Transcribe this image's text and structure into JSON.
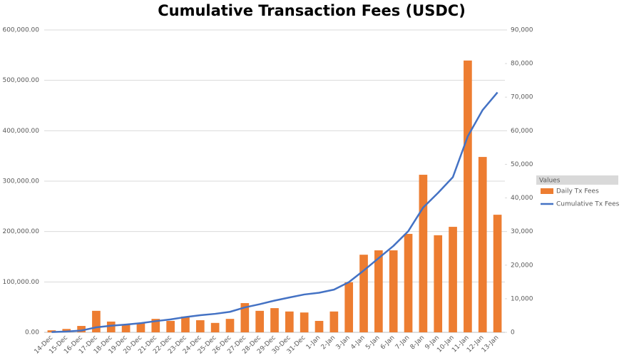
{
  "chart_data": {
    "type": "bar-line",
    "title": "Cumulative Transaction Fees (USDC)",
    "legend_title": "Values",
    "legend_position": "right",
    "categories": [
      "14-Dec",
      "15-Dec",
      "16-Dec",
      "17-Dec",
      "18-Dec",
      "19-Dec",
      "20-Dec",
      "21-Dec",
      "22-Dec",
      "23-Dec",
      "24-Dec",
      "25-Dec",
      "26-Dec",
      "27-Dec",
      "28-Dec",
      "29-Dec",
      "30-Dec",
      "31-Dec",
      "1-Jan",
      "2-Jan",
      "3-Jan",
      "4-Jan",
      "5-Jan",
      "6-Jan",
      "7-Jan",
      "8-Jan",
      "9-Jan",
      "10-Jan",
      "11-Jan",
      "12-Jan",
      "13-Jan"
    ],
    "series": [
      {
        "name": "Daily Tx Fees",
        "type": "bar",
        "axis": "y2",
        "color": "#ed7d31",
        "values": [
          600,
          1000,
          1900,
          6400,
          3200,
          2300,
          2800,
          4000,
          3400,
          4700,
          3600,
          2800,
          4000,
          8700,
          6400,
          7200,
          6200,
          5900,
          3400,
          6200,
          14900,
          23100,
          24400,
          24400,
          29300,
          46900,
          28900,
          31400,
          80900,
          52200,
          35000
        ]
      },
      {
        "name": "Cumulative Tx Fees",
        "type": "line",
        "axis": "y",
        "color": "#4472c4",
        "values": [
          600,
          1600,
          3500,
          9900,
          13100,
          15400,
          18200,
          22200,
          25600,
          30300,
          33900,
          36700,
          40700,
          49400,
          55800,
          63000,
          69200,
          75100,
          78500,
          84700,
          99600,
          122700,
          147100,
          171500,
          200800,
          247700,
          276600,
          308000,
          388900,
          441100,
          476100
        ]
      }
    ],
    "ylim": [
      0,
      600000
    ],
    "yticks": [
      {
        "value": 0,
        "label": "0.00"
      },
      {
        "value": 100000,
        "label": "100,000.00"
      },
      {
        "value": 200000,
        "label": "200,000.00"
      },
      {
        "value": 300000,
        "label": "300,000.00"
      },
      {
        "value": 400000,
        "label": "400,000.00"
      },
      {
        "value": 500000,
        "label": "500,000.00"
      },
      {
        "value": 600000,
        "label": "600,000.00"
      }
    ],
    "y2lim": [
      0,
      90000
    ],
    "y2ticks": [
      0,
      {
        "value": 10000,
        "label": "10,000"
      },
      {
        "value": 20000,
        "label": "20,000"
      },
      {
        "value": 30000,
        "label": "30,000"
      },
      {
        "value": 40000,
        "label": "40,000"
      },
      {
        "value": 50000,
        "label": "50,000"
      },
      {
        "value": 60000,
        "label": "60,000"
      },
      {
        "value": 70000,
        "label": "70,000"
      },
      {
        "value": 80000,
        "label": "80,000"
      },
      {
        "value": 90000,
        "label": "90,000"
      }
    ],
    "grid": true
  }
}
